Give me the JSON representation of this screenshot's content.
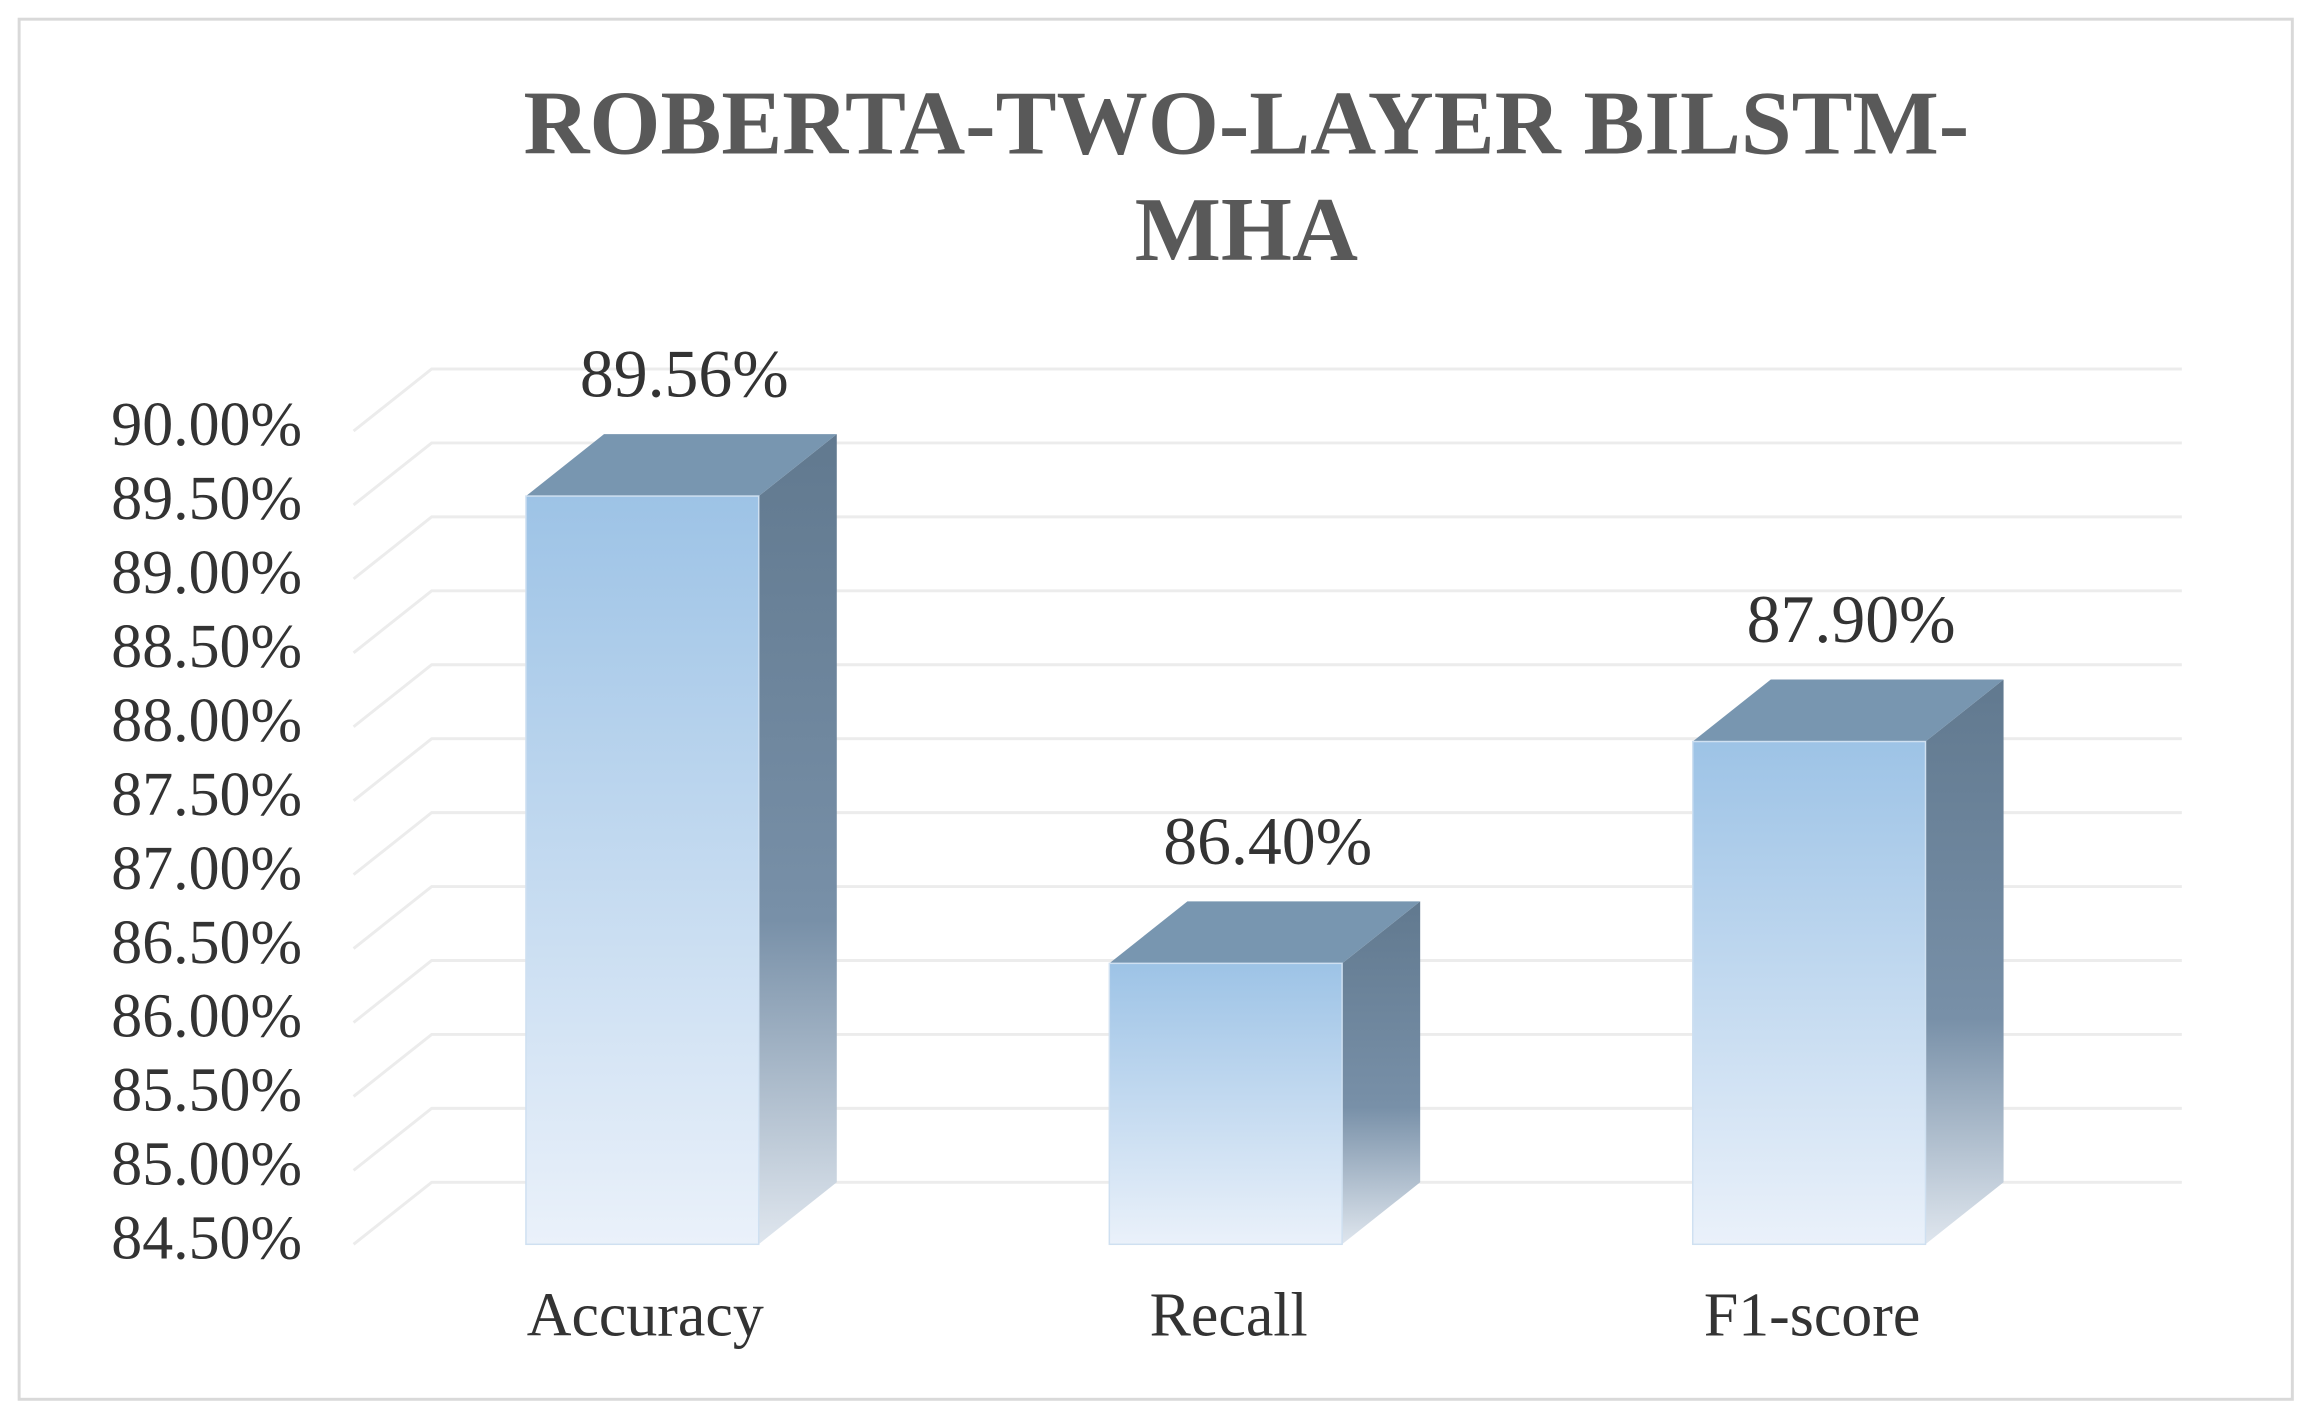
{
  "chart_data": {
    "type": "bar3d",
    "title": "ROBERTA-TWO-LAYER BILSTM-MHA",
    "categories": [
      "Accuracy",
      "Recall",
      "F1-score"
    ],
    "values": [
      89.56,
      86.4,
      87.9
    ],
    "value_labels": [
      "89.56%",
      "86.40%",
      "87.90%"
    ],
    "color": "#9dc3e6",
    "ylim": [
      84.5,
      90
    ],
    "yticks": [
      {
        "value": 84.5,
        "label": "84.50%"
      },
      {
        "value": 85,
        "label": "85.00%"
      },
      {
        "value": 85.5,
        "label": "85.50%"
      },
      {
        "value": 86,
        "label": "86.00%"
      },
      {
        "value": 86.5,
        "label": "86.50%"
      },
      {
        "value": 87,
        "label": "87.00%"
      },
      {
        "value": 87.5,
        "label": "87.50%"
      },
      {
        "value": 88,
        "label": "88.00%"
      },
      {
        "value": 88.5,
        "label": "88.50%"
      },
      {
        "value": 89,
        "label": "89.00%"
      },
      {
        "value": 89.5,
        "label": "89.50%"
      },
      {
        "value": 90,
        "label": "90.00%"
      }
    ],
    "grid": true
  }
}
